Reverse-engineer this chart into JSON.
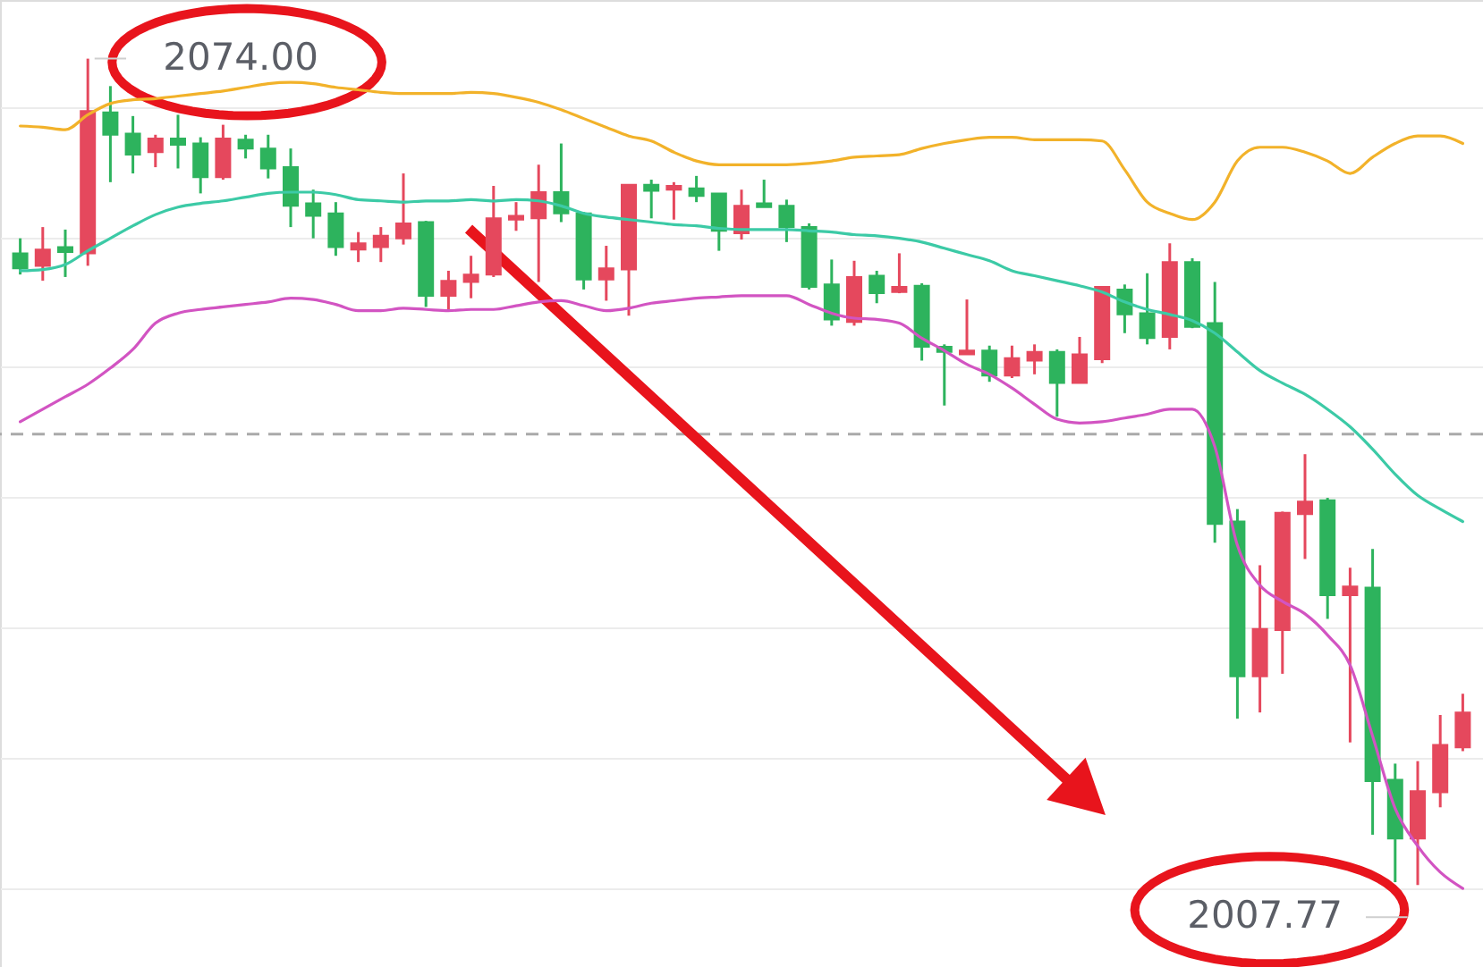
{
  "chart_data": {
    "type": "candlestick",
    "categories": [
      null,
      null,
      null,
      null,
      null,
      null,
      null,
      null,
      null,
      null,
      null,
      null,
      null,
      null,
      null,
      null,
      null,
      null,
      null,
      null,
      null,
      null,
      null,
      null,
      null,
      null,
      null,
      null,
      null,
      null,
      null,
      null,
      null,
      null,
      null,
      null,
      null,
      null,
      null,
      null,
      null,
      null,
      null,
      null,
      null,
      null,
      null,
      null,
      null,
      null,
      null,
      null,
      null,
      null,
      null,
      null,
      null,
      null,
      null,
      null,
      null,
      null,
      null,
      null,
      null
    ],
    "ohlc": [
      [
        2058.4,
        2059.6,
        2056.7,
        2057.2
      ],
      [
        2057.4,
        2060.5,
        2056.2,
        2058.7
      ],
      [
        2058.9,
        2060.3,
        2056.5,
        2058.5
      ],
      [
        2058.4,
        2074.0,
        2057.4,
        2069.8
      ],
      [
        2069.7,
        2071.8,
        2064.1,
        2067.9
      ],
      [
        2068.0,
        2069.4,
        2064.8,
        2066.3
      ],
      [
        2066.5,
        2067.9,
        2065.3,
        2067.6
      ],
      [
        2067.6,
        2069.5,
        2065.2,
        2067.1
      ],
      [
        2067.2,
        2067.7,
        2063.2,
        2064.5
      ],
      [
        2064.5,
        2068.7,
        2064.3,
        2067.6
      ],
      [
        2067.5,
        2067.9,
        2066.0,
        2066.8
      ],
      [
        2066.8,
        2067.9,
        2064.4,
        2065.2
      ],
      [
        2065.3,
        2066.8,
        2060.5,
        2062.2
      ],
      [
        2062.4,
        2063.5,
        2059.6,
        2061.4
      ],
      [
        2061.6,
        2062.5,
        2058.2,
        2058.9
      ],
      [
        2058.7,
        2060.1,
        2057.7,
        2059.2
      ],
      [
        2058.9,
        2060.5,
        2057.7,
        2059.8
      ],
      [
        2059.6,
        2064.8,
        2059.1,
        2060.8
      ],
      [
        2060.9,
        2061.0,
        2054.1,
        2055.0
      ],
      [
        2055.0,
        2057.0,
        2053.8,
        2056.2
      ],
      [
        2056.1,
        2058.2,
        2054.8,
        2056.7
      ],
      [
        2056.7,
        2063.8,
        2056.5,
        2061.2
      ],
      [
        2061.1,
        2062.5,
        2060.2,
        2061.4
      ],
      [
        2061.2,
        2065.5,
        2056.1,
        2063.3
      ],
      [
        2063.3,
        2067.2,
        2060.9,
        2061.6
      ],
      [
        2061.6,
        2061.7,
        2055.5,
        2056.3
      ],
      [
        2056.3,
        2059.0,
        2054.6,
        2057.2
      ],
      [
        2057.1,
        2063.9,
        2053.4,
        2063.9
      ],
      [
        2063.9,
        2064.3,
        2061.2,
        2063.4
      ],
      [
        2063.5,
        2064.1,
        2061.1,
        2063.8
      ],
      [
        2063.6,
        2064.6,
        2062.5,
        2063.0
      ],
      [
        2063.2,
        2063.2,
        2058.6,
        2060.2
      ],
      [
        2060.0,
        2063.5,
        2059.5,
        2062.2
      ],
      [
        2062.4,
        2064.3,
        2062.1,
        2062.1
      ],
      [
        2062.2,
        2062.7,
        2059.3,
        2060.5
      ],
      [
        2060.5,
        2060.8,
        2055.5,
        2055.7
      ],
      [
        2055.9,
        2057.9,
        2052.6,
        2053.1
      ],
      [
        2052.9,
        2057.8,
        2052.6,
        2056.5
      ],
      [
        2056.6,
        2057.0,
        2054.4,
        2055.2
      ],
      [
        2055.3,
        2058.4,
        2055.2,
        2055.7
      ],
      [
        2055.8,
        2056.0,
        2049.8,
        2050.9
      ],
      [
        2050.9,
        2051.1,
        2046.2,
        2050.5
      ],
      [
        2050.3,
        2054.7,
        2050.3,
        2050.6
      ],
      [
        2050.6,
        2051.0,
        2048.1,
        2048.6
      ],
      [
        2048.6,
        2051.0,
        2048.4,
        2050.0
      ],
      [
        2049.8,
        2051.1,
        2048.7,
        2050.5
      ],
      [
        2050.5,
        2050.7,
        2045.3,
        2048.0
      ],
      [
        2048.0,
        2051.7,
        2048.0,
        2050.3
      ],
      [
        2049.9,
        2055.7,
        2049.6,
        2055.7
      ],
      [
        2055.5,
        2055.9,
        2052.0,
        2053.5
      ],
      [
        2053.6,
        2056.8,
        2051.1,
        2051.6
      ],
      [
        2051.7,
        2059.2,
        2050.7,
        2057.7
      ],
      [
        2057.7,
        2058.0,
        2052.4,
        2052.5
      ],
      [
        2052.8,
        2056.1,
        2035.2,
        2036.7
      ],
      [
        2036.9,
        2037.9,
        2021.1,
        2024.5
      ],
      [
        2024.5,
        2033.4,
        2021.6,
        2028.3
      ],
      [
        2028.2,
        2037.7,
        2024.7,
        2037.6
      ],
      [
        2037.5,
        2042.3,
        2033.9,
        2038.5
      ],
      [
        2038.6,
        2038.8,
        2029.1,
        2031.0
      ],
      [
        2031.0,
        2033.2,
        2019.2,
        2031.7
      ],
      [
        2031.6,
        2034.7,
        2011.8,
        2016.1
      ],
      [
        2016.2,
        2017.5,
        2008.0,
        2011.5
      ],
      [
        2011.5,
        2017.7,
        2007.77,
        2015.3
      ],
      [
        2015.2,
        2021.4,
        2014.0,
        2019.0
      ],
      [
        2018.8,
        2023.1,
        2018.5,
        2021.6
      ]
    ],
    "colors": [
      "#2db35d",
      "#e5485d",
      "#2db35d",
      "#e5485d",
      "#2db35d",
      "#2db35d",
      "#e5485d",
      "#2db35d",
      "#2db35d",
      "#e5485d",
      "#2db35d",
      "#2db35d",
      "#2db35d",
      "#2db35d",
      "#2db35d",
      "#e5485d",
      "#e5485d",
      "#e5485d",
      "#2db35d",
      "#e5485d",
      "#e5485d",
      "#e5485d",
      "#e5485d",
      "#e5485d",
      "#2db35d",
      "#2db35d",
      "#e5485d",
      "#e5485d",
      "#2db35d",
      "#e5485d",
      "#2db35d",
      "#2db35d",
      "#e5485d",
      "#2db35d",
      "#2db35d",
      "#2db35d",
      "#2db35d",
      "#e5485d",
      "#2db35d",
      "#e5485d",
      "#2db35d",
      "#2db35d",
      "#e5485d",
      "#2db35d",
      "#e5485d",
      "#e5485d",
      "#2db35d",
      "#e5485d",
      "#e5485d",
      "#2db35d",
      "#2db35d",
      "#e5485d",
      "#2db35d",
      "#2db35d",
      "#2db35d",
      "#e5485d",
      "#e5485d",
      "#e5485d",
      "#2db35d",
      "#e5485d",
      "#2db35d",
      "#2db35d",
      "#e5485d",
      "#e5485d",
      "#e5485d"
    ],
    "series": [
      {
        "type": "line",
        "color": "#f2b22a",
        "values": [
          2068.6,
          2068.5,
          2068.3,
          2069.5,
          2070.4,
          2070.7,
          2070.8,
          2071.0,
          2071.2,
          2071.4,
          2071.7,
          2072.0,
          2072.1,
          2072.0,
          2071.7,
          2071.5,
          2071.3,
          2071.2,
          2071.2,
          2071.2,
          2071.3,
          2071.2,
          2070.9,
          2070.5,
          2069.9,
          2069.2,
          2068.5,
          2067.8,
          2067.4,
          2066.5,
          2065.8,
          2065.5,
          2065.5,
          2065.5,
          2065.5,
          2065.6,
          2065.8,
          2066.1,
          2066.2,
          2066.3,
          2066.8,
          2067.2,
          2067.5,
          2067.7,
          2067.7,
          2067.5,
          2067.5,
          2067.5,
          2067.4,
          2065.1,
          2062.5,
          2061.6,
          2061.1,
          2062.5,
          2065.8,
          2066.9,
          2066.9,
          2066.5,
          2065.8,
          2064.8,
          2066.1,
          2067.2,
          2067.8,
          2067.8,
          2067.2
        ]
      },
      {
        "type": "line",
        "color": "#3ccaa6",
        "values": [
          2057.0,
          2057.1,
          2057.5,
          2058.6,
          2059.6,
          2060.6,
          2061.5,
          2062.1,
          2062.4,
          2062.6,
          2062.9,
          2063.2,
          2063.3,
          2063.3,
          2063.1,
          2062.7,
          2062.6,
          2062.5,
          2062.6,
          2062.6,
          2062.7,
          2062.6,
          2062.7,
          2062.6,
          2062.2,
          2061.6,
          2061.3,
          2061.1,
          2060.9,
          2060.7,
          2060.6,
          2060.4,
          2060.3,
          2060.3,
          2060.3,
          2060.2,
          2060.1,
          2059.9,
          2059.8,
          2059.6,
          2059.3,
          2058.8,
          2058.3,
          2057.8,
          2057.0,
          2056.6,
          2056.2,
          2055.8,
          2055.3,
          2054.5,
          2053.9,
          2053.5,
          2053.0,
          2052.0,
          2050.5,
          2049.0,
          2048.0,
          2047.1,
          2045.9,
          2044.5,
          2042.7,
          2040.7,
          2039.0,
          2037.9,
          2036.9
        ]
      },
      {
        "type": "line",
        "color": "#d254c2",
        "values": [
          2044.9,
          2045.9,
          2046.9,
          2047.9,
          2049.2,
          2050.7,
          2052.8,
          2053.6,
          2053.9,
          2054.1,
          2054.3,
          2054.5,
          2054.8,
          2054.7,
          2054.3,
          2053.8,
          2053.8,
          2054.0,
          2053.9,
          2053.8,
          2053.9,
          2053.9,
          2054.2,
          2054.5,
          2054.6,
          2054.2,
          2053.8,
          2054.0,
          2054.4,
          2054.6,
          2054.8,
          2054.9,
          2055.0,
          2055.0,
          2055.0,
          2054.3,
          2053.6,
          2053.2,
          2053.1,
          2052.8,
          2051.6,
          2050.6,
          2049.5,
          2048.7,
          2047.6,
          2046.3,
          2045.1,
          2044.8,
          2044.9,
          2045.2,
          2045.5,
          2045.9,
          2045.9,
          2042.9,
          2035.0,
          2031.8,
          2030.5,
          2029.5,
          2027.8,
          2025.4,
          2019.7,
          2013.9,
          2010.9,
          2008.8,
          2007.5
        ]
      }
    ],
    "ylim": [
      2001.2,
      2078.7
    ],
    "yticks": [
      {
        "value": 2070.1,
        "label": null
      },
      {
        "value": 2059.6,
        "label": null
      },
      {
        "value": 2049.3,
        "label": null
      },
      {
        "value": 2038.9,
        "label": null
      },
      {
        "value": 2028.4,
        "label": null
      },
      {
        "value": 2018.0,
        "label": null
      },
      {
        "value": 2007.5,
        "label": null
      }
    ],
    "grid": "y",
    "ref_lines": [
      {
        "axis": "y",
        "value": 2043.9,
        "color": "#a9a9a9",
        "line_style": "dashed"
      }
    ],
    "annotations": [
      "2074.00",
      "2007.77"
    ]
  }
}
